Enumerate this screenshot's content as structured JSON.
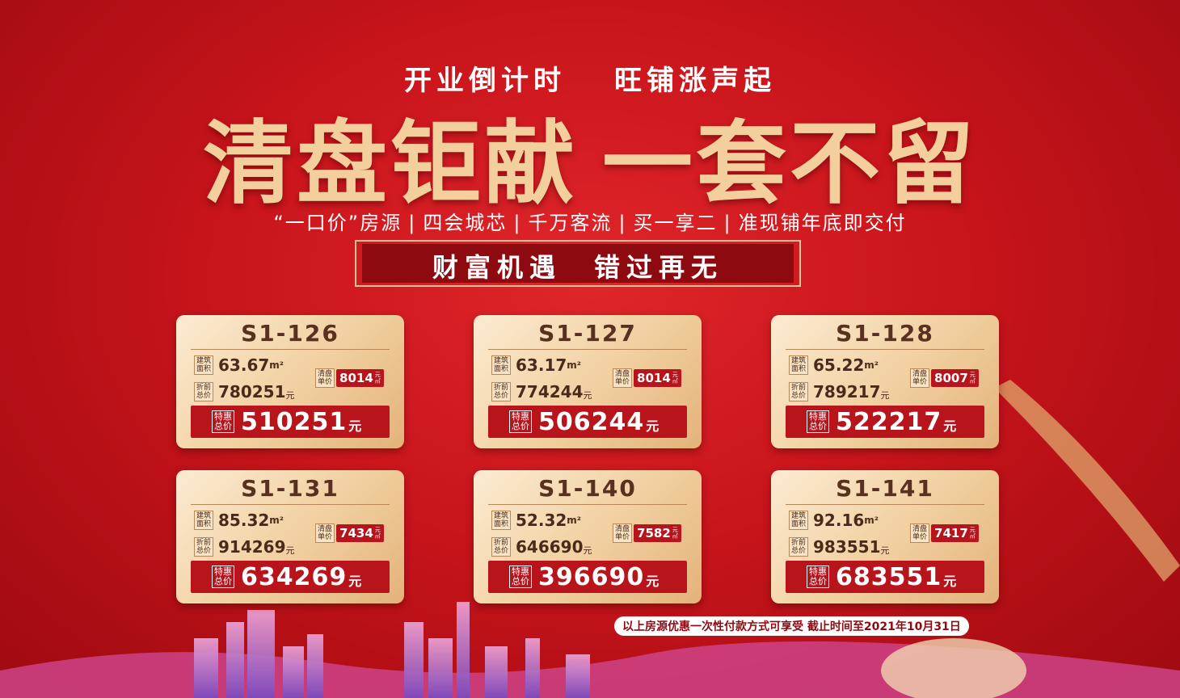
{
  "header": {
    "slogan": [
      "开业倒计时",
      "旺铺涨声起"
    ],
    "title": [
      "清盘钜献",
      "一套不留"
    ],
    "features": [
      "“一口价”房源",
      "四会城芯",
      "千万客流",
      "买一享二",
      "准现铺年底即交付"
    ],
    "banner": [
      "财富机遇",
      "错过再无"
    ]
  },
  "labels": {
    "area": [
      "建筑",
      "面积"
    ],
    "unit_price": [
      "清盘",
      "单价"
    ],
    "original_total": [
      "折前",
      "总价"
    ],
    "special_total": [
      "特惠",
      "总价"
    ],
    "area_unit": "m²",
    "unit_price_unit": [
      "元",
      "㎡"
    ],
    "yuan": "元"
  },
  "cards": [
    {
      "code": "S1-126",
      "area": 63.67,
      "unit_price": 8014,
      "original_total": 780251,
      "special_total": 510251
    },
    {
      "code": "S1-127",
      "area": 63.17,
      "unit_price": 8014,
      "original_total": 774244,
      "special_total": 506244
    },
    {
      "code": "S1-128",
      "area": 65.22,
      "unit_price": 8007,
      "original_total": 789217,
      "special_total": 522217
    },
    {
      "code": "S1-131",
      "area": 85.32,
      "unit_price": 7434,
      "original_total": 914269,
      "special_total": 634269
    },
    {
      "code": "S1-140",
      "area": 52.32,
      "unit_price": 7582,
      "original_total": 646690,
      "special_total": 396690
    },
    {
      "code": "S1-141",
      "area": 92.16,
      "unit_price": 7417,
      "original_total": 983551,
      "special_total": 683551
    }
  ],
  "footer": {
    "note": "以上房源优惠一次性付款方式可享受  截止时间至2021年10月31日"
  }
}
